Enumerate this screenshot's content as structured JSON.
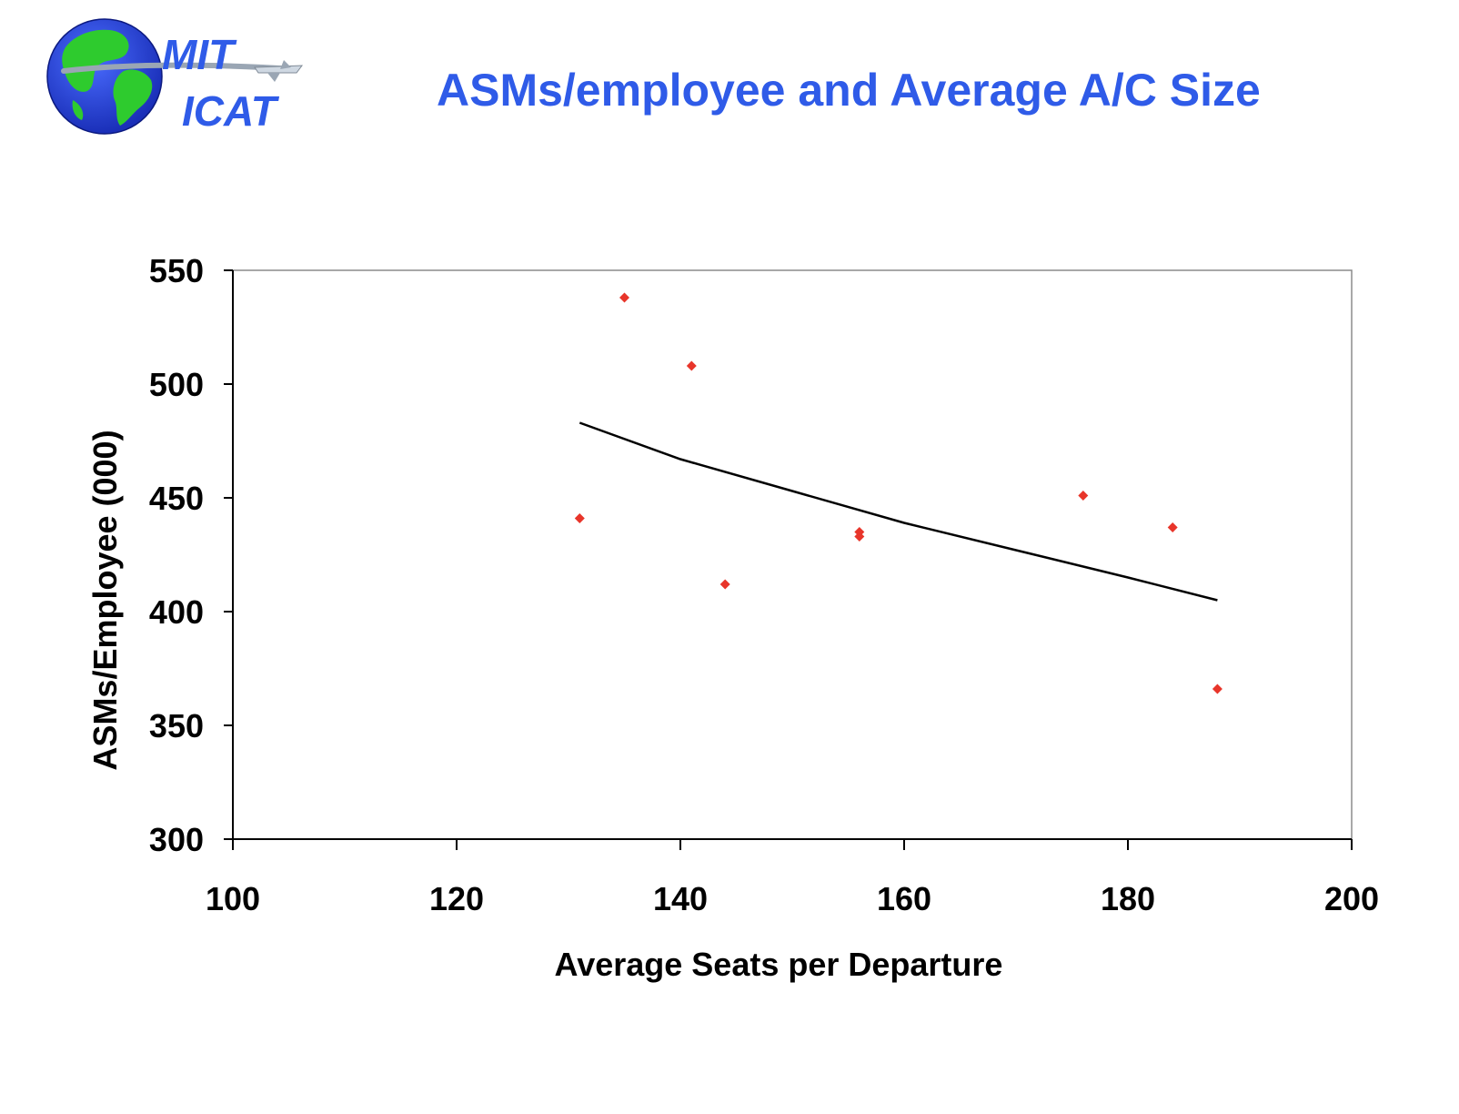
{
  "slide": {
    "title": "ASMs/employee and Average A/C Size",
    "title_color": "#2f5be8"
  },
  "logo": {
    "line1": "MIT",
    "line2": "ICAT",
    "icon": "globe-airplane-icon",
    "colors": {
      "ocean": "#1f3fd6",
      "land": "#2ecb2e",
      "text": "#2f5be8"
    }
  },
  "chart_data": {
    "type": "scatter",
    "title": "",
    "xlabel": "Average Seats per Departure",
    "ylabel": "ASMs/Employee (000)",
    "xlim": [
      100,
      200
    ],
    "ylim": [
      300,
      550
    ],
    "xticks": [
      100,
      120,
      140,
      160,
      180,
      200
    ],
    "yticks": [
      300,
      350,
      400,
      450,
      500,
      550
    ],
    "grid": false,
    "legend": "none",
    "series": [
      {
        "kind": "points",
        "marker": "diamond",
        "color": "#e8352a",
        "points": [
          {
            "x": 131,
            "y": 441
          },
          {
            "x": 135,
            "y": 538
          },
          {
            "x": 141,
            "y": 508
          },
          {
            "x": 144,
            "y": 412
          },
          {
            "x": 156,
            "y": 435
          },
          {
            "x": 156,
            "y": 433
          },
          {
            "x": 176,
            "y": 451
          },
          {
            "x": 184,
            "y": 437
          },
          {
            "x": 188,
            "y": 366
          }
        ]
      },
      {
        "kind": "trendline",
        "color": "#000000",
        "points": [
          {
            "x": 131,
            "y": 483
          },
          {
            "x": 140,
            "y": 467
          },
          {
            "x": 150,
            "y": 453
          },
          {
            "x": 160,
            "y": 439
          },
          {
            "x": 170,
            "y": 427
          },
          {
            "x": 180,
            "y": 415
          },
          {
            "x": 188,
            "y": 405
          }
        ]
      }
    ]
  }
}
